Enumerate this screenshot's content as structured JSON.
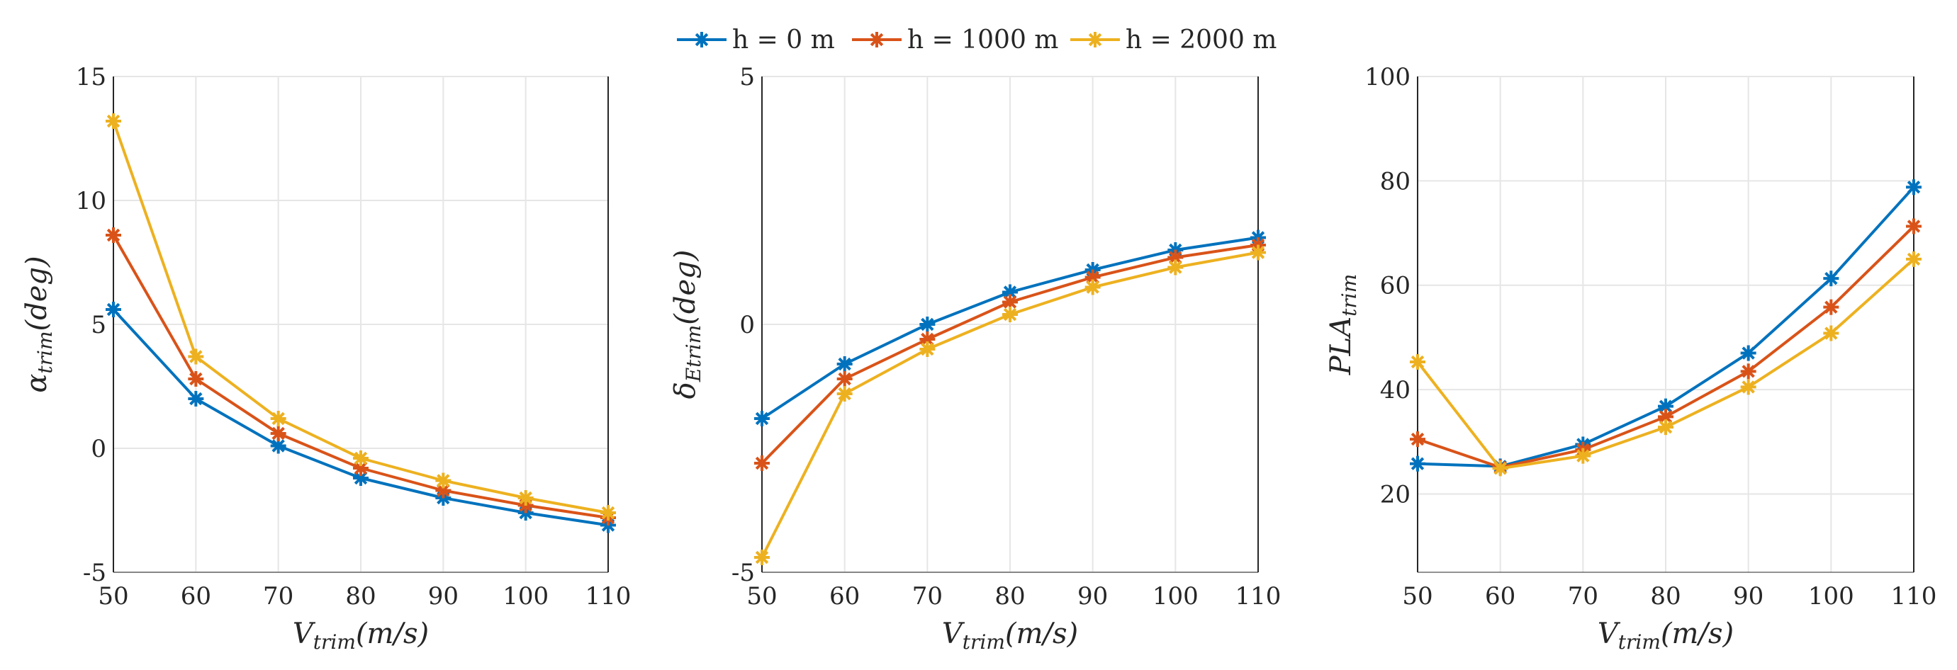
{
  "legend": [
    {
      "label": "h = 0 m",
      "color": "#0072BD"
    },
    {
      "label": "h = 1000 m",
      "color": "#D95319"
    },
    {
      "label": "h = 2000 m",
      "color": "#EDB120"
    }
  ],
  "chart_data": [
    {
      "type": "line",
      "title": "",
      "xlabel": {
        "main": "V",
        "sub": "trim",
        "rest": "(m/s)"
      },
      "ylabel": {
        "main": "α",
        "sub": "trim",
        "rest": "(deg)"
      },
      "x": [
        50,
        60,
        70,
        80,
        90,
        100,
        110
      ],
      "xlim": [
        50,
        110
      ],
      "ylim": [
        -5,
        15
      ],
      "yticks": [
        -5,
        0,
        5,
        10,
        15
      ],
      "xticks": [
        50,
        60,
        70,
        80,
        90,
        100,
        110
      ],
      "grid": true,
      "series": [
        {
          "name": "h = 0 m",
          "values": [
            5.6,
            2.0,
            0.1,
            -1.2,
            -2.0,
            -2.6,
            -3.1
          ]
        },
        {
          "name": "h = 1000 m",
          "values": [
            8.6,
            2.8,
            0.6,
            -0.8,
            -1.7,
            -2.3,
            -2.8
          ]
        },
        {
          "name": "h = 2000 m",
          "values": [
            13.2,
            3.7,
            1.2,
            -0.4,
            -1.3,
            -2.0,
            -2.6
          ]
        }
      ]
    },
    {
      "type": "line",
      "title": "",
      "xlabel": {
        "main": "V",
        "sub": "trim",
        "rest": "(m/s)"
      },
      "ylabel": {
        "main": "δ",
        "sub": "Etrim",
        "rest": "(deg)"
      },
      "x": [
        50,
        60,
        70,
        80,
        90,
        100,
        110
      ],
      "xlim": [
        50,
        110
      ],
      "ylim": [
        -5,
        5
      ],
      "yticks": [
        -5,
        0,
        5
      ],
      "xticks": [
        50,
        60,
        70,
        80,
        90,
        100,
        110
      ],
      "grid": true,
      "series": [
        {
          "name": "h = 0 m",
          "values": [
            -1.9,
            -0.8,
            0.0,
            0.65,
            1.1,
            1.5,
            1.75
          ]
        },
        {
          "name": "h = 1000 m",
          "values": [
            -2.8,
            -1.1,
            -0.3,
            0.45,
            0.95,
            1.35,
            1.6
          ]
        },
        {
          "name": "h = 2000 m",
          "values": [
            -4.7,
            -1.4,
            -0.5,
            0.2,
            0.75,
            1.15,
            1.45
          ]
        }
      ]
    },
    {
      "type": "line",
      "title": "",
      "xlabel": {
        "main": "V",
        "sub": "trim",
        "rest": "(m/s)"
      },
      "ylabel": {
        "main": "PLA",
        "sub": "trim",
        "rest": ""
      },
      "x": [
        50,
        60,
        70,
        80,
        90,
        100,
        110
      ],
      "xlim": [
        50,
        110
      ],
      "ylim": [
        5,
        100
      ],
      "yticks": [
        20,
        40,
        60,
        80,
        100
      ],
      "xticks": [
        50,
        60,
        70,
        80,
        90,
        100,
        110
      ],
      "grid": true,
      "series": [
        {
          "name": "h = 0 m",
          "values": [
            25.8,
            25.3,
            29.5,
            36.8,
            47.0,
            61.3,
            78.8
          ]
        },
        {
          "name": "h = 1000 m",
          "values": [
            30.5,
            25.1,
            28.5,
            34.8,
            43.5,
            55.8,
            71.3
          ]
        },
        {
          "name": "h = 2000 m",
          "values": [
            45.3,
            24.9,
            27.3,
            32.8,
            40.5,
            50.8,
            65.0
          ]
        }
      ]
    }
  ]
}
